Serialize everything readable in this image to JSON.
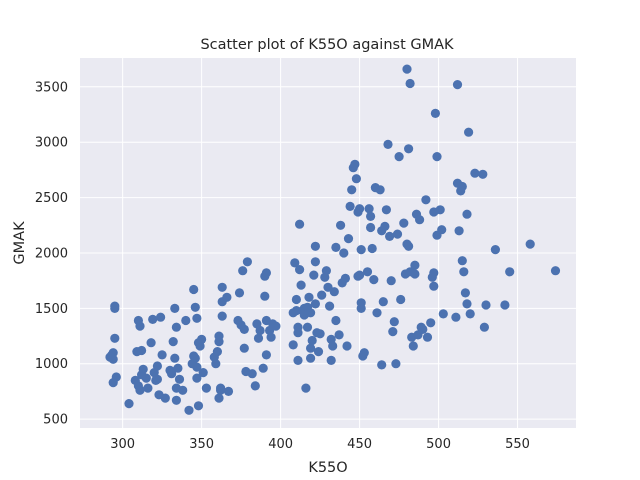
{
  "chart_data": {
    "type": "scatter",
    "title": "Scatter plot of K55O against GMAK",
    "xlabel": "K55O",
    "ylabel": "GMAK",
    "xlim": [
      273,
      587
    ],
    "ylim": [
      420,
      3760
    ],
    "xticks": [
      300,
      350,
      400,
      450,
      500,
      550
    ],
    "yticks": [
      500,
      1000,
      1500,
      2000,
      2500,
      3000,
      3500
    ],
    "xtick_labels": [
      "300",
      "350",
      "400",
      "450",
      "500",
      "550"
    ],
    "ytick_labels": [
      "500",
      "1000",
      "1500",
      "2000",
      "2500",
      "3000",
      "3500"
    ],
    "grid": true,
    "colors": {
      "background": "#eaeaf2",
      "grid": "#ffffff",
      "marker": "#4c72b0"
    },
    "series": [
      {
        "points": [
          [
            292,
            1060
          ],
          [
            293,
            1075
          ],
          [
            294,
            1100
          ],
          [
            295,
            1230
          ],
          [
            295,
            1500
          ],
          [
            295,
            1520
          ],
          [
            294,
            830
          ],
          [
            296,
            880
          ],
          [
            294,
            1040
          ],
          [
            304,
            640
          ],
          [
            308,
            850
          ],
          [
            309,
            1110
          ],
          [
            310,
            1390
          ],
          [
            311,
            1340
          ],
          [
            310,
            800
          ],
          [
            311,
            760
          ],
          [
            312,
            900
          ],
          [
            313,
            950
          ],
          [
            312,
            1120
          ],
          [
            315,
            870
          ],
          [
            316,
            780
          ],
          [
            318,
            1190
          ],
          [
            319,
            1400
          ],
          [
            320,
            920
          ],
          [
            321,
            850
          ],
          [
            322,
            980
          ],
          [
            322,
            860
          ],
          [
            323,
            720
          ],
          [
            324,
            1420
          ],
          [
            325,
            1080
          ],
          [
            327,
            690
          ],
          [
            330,
            940
          ],
          [
            331,
            910
          ],
          [
            332,
            1200
          ],
          [
            333,
            1500
          ],
          [
            333,
            1050
          ],
          [
            334,
            1330
          ],
          [
            334,
            780
          ],
          [
            334,
            670
          ],
          [
            335,
            960
          ],
          [
            336,
            860
          ],
          [
            338,
            760
          ],
          [
            340,
            1390
          ],
          [
            342,
            580
          ],
          [
            344,
            1000
          ],
          [
            345,
            1070
          ],
          [
            346,
            1050
          ],
          [
            345,
            1670
          ],
          [
            346,
            1510
          ],
          [
            347,
            1410
          ],
          [
            348,
            1190
          ],
          [
            349,
            1160
          ],
          [
            347,
            970
          ],
          [
            347,
            870
          ],
          [
            348,
            620
          ],
          [
            350,
            1220
          ],
          [
            351,
            920
          ],
          [
            353,
            780
          ],
          [
            358,
            1060
          ],
          [
            359,
            1000
          ],
          [
            360,
            1110
          ],
          [
            361,
            1250
          ],
          [
            361,
            1200
          ],
          [
            361,
            690
          ],
          [
            362,
            780
          ],
          [
            362,
            760
          ],
          [
            363,
            1560
          ],
          [
            363,
            1430
          ],
          [
            363,
            1690
          ],
          [
            366,
            1600
          ],
          [
            367,
            750
          ],
          [
            373,
            1390
          ],
          [
            374,
            1640
          ],
          [
            375,
            1350
          ],
          [
            376,
            1840
          ],
          [
            377,
            1310
          ],
          [
            377,
            1140
          ],
          [
            378,
            930
          ],
          [
            379,
            1920
          ],
          [
            382,
            910
          ],
          [
            384,
            800
          ],
          [
            385,
            1360
          ],
          [
            386,
            1230
          ],
          [
            387,
            1300
          ],
          [
            389,
            960
          ],
          [
            390,
            1610
          ],
          [
            390,
            1790
          ],
          [
            391,
            1820
          ],
          [
            391,
            1390
          ],
          [
            391,
            1080
          ],
          [
            393,
            1300
          ],
          [
            394,
            1240
          ],
          [
            395,
            1360
          ],
          [
            397,
            1340
          ],
          [
            408,
            1170
          ],
          [
            408,
            1460
          ],
          [
            409,
            1910
          ],
          [
            410,
            1480
          ],
          [
            410,
            1580
          ],
          [
            411,
            1030
          ],
          [
            411,
            1330
          ],
          [
            411,
            1280
          ],
          [
            412,
            2260
          ],
          [
            412,
            1850
          ],
          [
            413,
            1710
          ],
          [
            414,
            1480
          ],
          [
            415,
            1440
          ],
          [
            415,
            1500
          ],
          [
            416,
            780
          ],
          [
            417,
            1330
          ],
          [
            417,
            1510
          ],
          [
            418,
            1600
          ],
          [
            419,
            1460
          ],
          [
            419,
            1140
          ],
          [
            419,
            1050
          ],
          [
            420,
            1210
          ],
          [
            421,
            1800
          ],
          [
            422,
            1920
          ],
          [
            422,
            2060
          ],
          [
            422,
            1540
          ],
          [
            423,
            1280
          ],
          [
            424,
            1110
          ],
          [
            425,
            1270
          ],
          [
            426,
            1620
          ],
          [
            428,
            1780
          ],
          [
            429,
            1840
          ],
          [
            430,
            1690
          ],
          [
            431,
            1520
          ],
          [
            432,
            1030
          ],
          [
            432,
            1220
          ],
          [
            433,
            1160
          ],
          [
            434,
            1650
          ],
          [
            435,
            2050
          ],
          [
            435,
            1390
          ],
          [
            437,
            1260
          ],
          [
            438,
            2250
          ],
          [
            439,
            1730
          ],
          [
            440,
            2000
          ],
          [
            441,
            1770
          ],
          [
            442,
            1160
          ],
          [
            443,
            2130
          ],
          [
            444,
            2420
          ],
          [
            445,
            2570
          ],
          [
            446,
            2770
          ],
          [
            447,
            2800
          ],
          [
            448,
            2670
          ],
          [
            449,
            2370
          ],
          [
            449,
            1790
          ],
          [
            450,
            1800
          ],
          [
            450,
            2400
          ],
          [
            451,
            2030
          ],
          [
            451,
            1550
          ],
          [
            451,
            1500
          ],
          [
            452,
            1070
          ],
          [
            453,
            1100
          ],
          [
            455,
            1830
          ],
          [
            456,
            2400
          ],
          [
            457,
            2330
          ],
          [
            457,
            2230
          ],
          [
            458,
            2040
          ],
          [
            459,
            1760
          ],
          [
            460,
            2590
          ],
          [
            461,
            1460
          ],
          [
            463,
            2570
          ],
          [
            464,
            2200
          ],
          [
            464,
            990
          ],
          [
            465,
            1560
          ],
          [
            466,
            2240
          ],
          [
            467,
            2390
          ],
          [
            468,
            2980
          ],
          [
            469,
            2150
          ],
          [
            470,
            1750
          ],
          [
            471,
            1290
          ],
          [
            472,
            1380
          ],
          [
            473,
            1000
          ],
          [
            474,
            2170
          ],
          [
            475,
            2870
          ],
          [
            476,
            1580
          ],
          [
            478,
            2270
          ],
          [
            479,
            1810
          ],
          [
            480,
            3660
          ],
          [
            480,
            2080
          ],
          [
            481,
            2060
          ],
          [
            481,
            2940
          ],
          [
            482,
            3530
          ],
          [
            482,
            1830
          ],
          [
            483,
            1240
          ],
          [
            484,
            1160
          ],
          [
            485,
            1890
          ],
          [
            485,
            1810
          ],
          [
            486,
            2350
          ],
          [
            487,
            1260
          ],
          [
            488,
            2300
          ],
          [
            489,
            1330
          ],
          [
            490,
            1310
          ],
          [
            492,
            2480
          ],
          [
            493,
            1240
          ],
          [
            495,
            1370
          ],
          [
            496,
            1780
          ],
          [
            497,
            1820
          ],
          [
            497,
            1700
          ],
          [
            497,
            2370
          ],
          [
            498,
            3260
          ],
          [
            499,
            2870
          ],
          [
            499,
            2160
          ],
          [
            501,
            2390
          ],
          [
            502,
            2210
          ],
          [
            503,
            1450
          ],
          [
            511,
            1420
          ],
          [
            512,
            3520
          ],
          [
            512,
            2630
          ],
          [
            513,
            2200
          ],
          [
            514,
            2560
          ],
          [
            515,
            2600
          ],
          [
            515,
            1930
          ],
          [
            516,
            1830
          ],
          [
            517,
            1640
          ],
          [
            518,
            1540
          ],
          [
            518,
            2350
          ],
          [
            519,
            3090
          ],
          [
            520,
            1450
          ],
          [
            523,
            2720
          ],
          [
            528,
            2710
          ],
          [
            529,
            1330
          ],
          [
            530,
            1530
          ],
          [
            536,
            2030
          ],
          [
            542,
            1530
          ],
          [
            545,
            1830
          ],
          [
            558,
            2080
          ],
          [
            574,
            1840
          ]
        ]
      }
    ]
  }
}
